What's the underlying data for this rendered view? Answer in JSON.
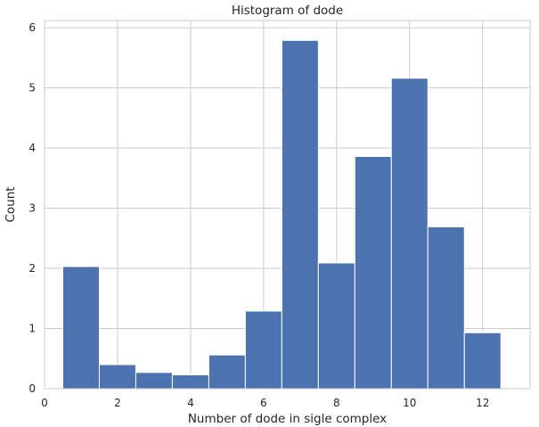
{
  "chart_data": {
    "type": "bar",
    "title": "Histogram of dode",
    "xlabel": "Number of dode in sigle complex",
    "ylabel": "Count",
    "xlim": [
      0,
      13.3
    ],
    "ylim": [
      0,
      6.12
    ],
    "xticks": [
      0,
      2,
      4,
      6,
      8,
      10,
      12
    ],
    "yticks": [
      0,
      1,
      2,
      3,
      4,
      5,
      6
    ],
    "grid": true,
    "bar_color": "#4c72b0",
    "bins": [
      {
        "x0": 0.5,
        "x1": 1.5,
        "value": 2.03
      },
      {
        "x0": 1.5,
        "x1": 2.5,
        "value": 0.4
      },
      {
        "x0": 2.5,
        "x1": 3.5,
        "value": 0.27
      },
      {
        "x0": 3.5,
        "x1": 4.5,
        "value": 0.23
      },
      {
        "x0": 4.5,
        "x1": 5.5,
        "value": 0.56
      },
      {
        "x0": 5.5,
        "x1": 6.5,
        "value": 1.29
      },
      {
        "x0": 6.5,
        "x1": 7.5,
        "value": 5.79
      },
      {
        "x0": 7.5,
        "x1": 8.5,
        "value": 2.09
      },
      {
        "x0": 8.5,
        "x1": 9.5,
        "value": 3.86
      },
      {
        "x0": 9.5,
        "x1": 10.5,
        "value": 5.16
      },
      {
        "x0": 10.5,
        "x1": 11.5,
        "value": 2.69
      },
      {
        "x0": 11.5,
        "x1": 12.5,
        "value": 0.93
      }
    ]
  }
}
